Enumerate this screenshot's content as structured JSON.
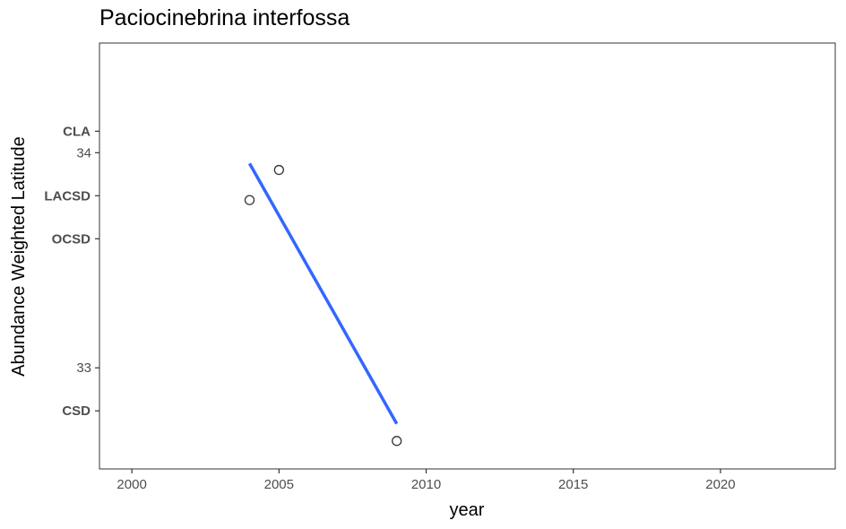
{
  "chart_data": {
    "type": "scatter",
    "title": "Paciocinebrina interfossa",
    "xlabel": "year",
    "ylabel": "Abundance Weighted Latitude",
    "xlim": [
      1998.9,
      2023.9
    ],
    "ylim": [
      32.53,
      34.51
    ],
    "x_ticks": [
      2000,
      2005,
      2010,
      2015,
      2020
    ],
    "y_ticks": [
      33,
      34
    ],
    "site_ticks": [
      {
        "label": "CLA",
        "value": 34.1
      },
      {
        "label": "LACSD",
        "value": 33.8
      },
      {
        "label": "OCSD",
        "value": 33.6
      },
      {
        "label": "CSD",
        "value": 32.8
      }
    ],
    "points": [
      {
        "x": 2004,
        "y": 33.78
      },
      {
        "x": 2005,
        "y": 33.92
      },
      {
        "x": 2009,
        "y": 32.66
      }
    ],
    "trend_line": {
      "x": [
        2004,
        2009
      ],
      "y": [
        33.95,
        32.74
      ],
      "color": "#3366ff"
    },
    "grid": false,
    "legend": "none"
  }
}
